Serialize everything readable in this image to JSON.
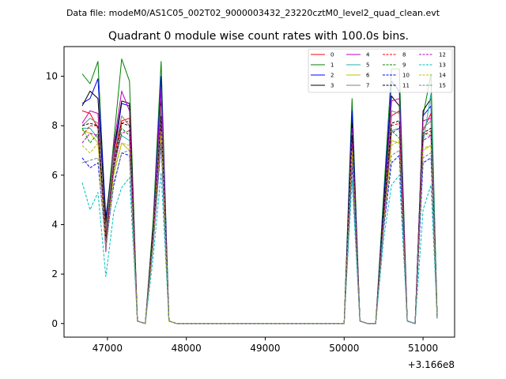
{
  "chart_data": {
    "type": "line",
    "suptitle": "Data file: modeM0/AS1C05_002T02_9000003432_23220cztM0_level2_quad_clean.evt",
    "title": "Quadrant 0 module wise count rates with 100.0s bins.",
    "xlabel": "",
    "ylabel": "",
    "x_offset_label": "+3.166e8",
    "xlim": [
      46450,
      51400
    ],
    "ylim": [
      -0.55,
      11.2
    ],
    "xticks": [
      47000,
      48000,
      49000,
      50000,
      51000
    ],
    "xtick_labels": [
      "47000",
      "48000",
      "49000",
      "50000",
      "51000"
    ],
    "yticks": [
      0,
      2,
      4,
      6,
      8,
      10
    ],
    "ytick_labels": [
      "0",
      "2",
      "4",
      "6",
      "8",
      "10"
    ],
    "grid": false,
    "legend_position": "top-right",
    "x": [
      46680,
      46780,
      46880,
      46980,
      47080,
      47180,
      47280,
      47380,
      47480,
      47580,
      47680,
      47780,
      47880,
      47980,
      50000,
      50100,
      50200,
      50300,
      50400,
      50500,
      50600,
      50700,
      50800,
      50900,
      51000,
      51100,
      51180
    ],
    "series": [
      {
        "name": "0",
        "color": "#ff0000",
        "dash": "solid",
        "values": [
          8.6,
          8.5,
          7.9,
          3.3,
          6.7,
          8.2,
          8.3,
          0.1,
          0.0,
          3.4,
          9.0,
          0.1,
          0.0,
          0.0,
          0.0,
          8.0,
          0.1,
          0.0,
          0.0,
          4.5,
          8.4,
          8.6,
          0.1,
          0.0,
          7.8,
          8.5,
          0.2
        ]
      },
      {
        "name": "1",
        "color": "#008000",
        "dash": "solid",
        "values": [
          10.1,
          9.7,
          10.6,
          4.0,
          7.4,
          10.7,
          9.8,
          0.1,
          0.0,
          4.2,
          10.6,
          0.1,
          0.0,
          0.0,
          0.0,
          9.1,
          0.1,
          0.0,
          0.0,
          5.2,
          10.3,
          10.3,
          0.1,
          0.0,
          8.4,
          10.1,
          0.2
        ]
      },
      {
        "name": "2",
        "color": "#0000ff",
        "dash": "solid",
        "values": [
          8.9,
          9.1,
          9.9,
          4.3,
          6.8,
          8.9,
          8.8,
          0.1,
          0.0,
          3.8,
          10.0,
          0.1,
          0.0,
          0.0,
          0.0,
          8.6,
          0.1,
          0.0,
          0.0,
          4.8,
          9.8,
          9.4,
          0.1,
          0.0,
          8.4,
          8.8,
          0.2
        ]
      },
      {
        "name": "3",
        "color": "#000000",
        "dash": "solid",
        "values": [
          8.8,
          9.4,
          9.1,
          4.1,
          7.0,
          9.0,
          8.9,
          0.1,
          0.0,
          3.9,
          8.9,
          0.1,
          0.0,
          0.0,
          0.0,
          8.1,
          0.1,
          0.0,
          0.0,
          4.6,
          9.2,
          8.8,
          0.1,
          0.0,
          8.6,
          9.1,
          0.2
        ]
      },
      {
        "name": "4",
        "color": "#bf00bf",
        "dash": "solid",
        "values": [
          8.1,
          8.6,
          8.5,
          2.9,
          7.2,
          9.4,
          8.6,
          0.1,
          0.0,
          3.7,
          9.5,
          0.1,
          0.0,
          0.0,
          0.0,
          7.9,
          0.1,
          0.0,
          0.0,
          4.4,
          9.0,
          9.1,
          0.1,
          0.0,
          8.2,
          8.3,
          0.2
        ]
      },
      {
        "name": "5",
        "color": "#20b2aa",
        "dash": "solid",
        "values": [
          7.9,
          7.9,
          7.5,
          3.6,
          6.6,
          7.6,
          7.4,
          0.1,
          0.0,
          3.5,
          8.6,
          0.1,
          0.0,
          0.0,
          0.0,
          7.0,
          0.1,
          0.0,
          0.0,
          4.2,
          7.8,
          7.9,
          0.1,
          0.0,
          7.3,
          9.3,
          0.2
        ]
      },
      {
        "name": "6",
        "color": "#bfbf00",
        "dash": "solid",
        "values": [
          7.8,
          7.7,
          7.3,
          3.4,
          6.1,
          7.3,
          7.0,
          0.1,
          0.0,
          3.3,
          7.6,
          0.1,
          0.0,
          0.0,
          0.0,
          6.8,
          0.1,
          0.0,
          0.0,
          4.0,
          7.4,
          7.3,
          0.1,
          0.0,
          7.0,
          7.2,
          0.2
        ]
      },
      {
        "name": "7",
        "color": "#808080",
        "dash": "solid",
        "values": [
          8.0,
          8.3,
          8.1,
          3.8,
          6.9,
          8.4,
          8.0,
          0.1,
          0.0,
          3.6,
          8.8,
          0.1,
          0.0,
          0.0,
          0.0,
          7.7,
          0.1,
          0.0,
          0.0,
          4.4,
          8.6,
          8.5,
          0.1,
          0.0,
          7.9,
          8.2,
          0.2
        ]
      },
      {
        "name": "8",
        "color": "#ff0000",
        "dash": "dashed",
        "values": [
          7.6,
          8.0,
          8.0,
          3.5,
          6.5,
          8.1,
          8.2,
          0.1,
          0.0,
          3.5,
          8.3,
          0.1,
          0.0,
          0.0,
          0.0,
          7.6,
          0.1,
          0.0,
          0.0,
          4.3,
          8.0,
          8.1,
          0.1,
          0.0,
          7.6,
          7.8,
          0.2
        ]
      },
      {
        "name": "9",
        "color": "#008000",
        "dash": "dashed",
        "values": [
          7.9,
          7.3,
          7.7,
          3.3,
          6.2,
          7.9,
          7.6,
          0.1,
          0.0,
          3.4,
          8.1,
          0.1,
          0.0,
          0.0,
          0.0,
          7.4,
          0.1,
          0.0,
          0.0,
          4.1,
          7.8,
          7.5,
          0.1,
          0.0,
          7.7,
          7.6,
          0.2
        ]
      },
      {
        "name": "10",
        "color": "#0000ff",
        "dash": "dashed",
        "values": [
          6.7,
          6.3,
          6.5,
          3.2,
          5.6,
          6.9,
          6.8,
          0.1,
          0.0,
          3.2,
          7.3,
          0.1,
          0.0,
          0.0,
          0.0,
          6.4,
          0.1,
          0.0,
          0.0,
          3.8,
          6.5,
          6.8,
          0.1,
          0.0,
          6.5,
          6.7,
          0.2
        ]
      },
      {
        "name": "11",
        "color": "#000000",
        "dash": "dashed",
        "values": [
          8.0,
          8.1,
          8.0,
          3.4,
          6.4,
          8.1,
          8.0,
          0.1,
          0.0,
          3.5,
          8.4,
          0.1,
          0.0,
          0.0,
          0.0,
          7.6,
          0.1,
          0.0,
          0.0,
          4.4,
          8.1,
          8.2,
          0.1,
          0.0,
          7.7,
          7.9,
          0.2
        ]
      },
      {
        "name": "12",
        "color": "#bf00bf",
        "dash": "dashed",
        "values": [
          7.3,
          7.7,
          7.6,
          3.3,
          6.3,
          7.7,
          7.8,
          0.1,
          0.0,
          3.4,
          8.0,
          0.1,
          0.0,
          0.0,
          0.0,
          7.3,
          0.1,
          0.0,
          0.0,
          4.2,
          7.7,
          7.9,
          0.1,
          0.0,
          7.4,
          7.6,
          0.2
        ]
      },
      {
        "name": "13",
        "color": "#00bfbf",
        "dash": "dashed",
        "values": [
          5.7,
          4.6,
          5.3,
          1.9,
          4.5,
          5.5,
          5.9,
          0.1,
          0.0,
          2.7,
          6.1,
          0.1,
          0.0,
          0.0,
          0.0,
          5.8,
          0.1,
          0.0,
          0.0,
          3.4,
          5.6,
          6.0,
          0.1,
          0.0,
          4.6,
          5.6,
          0.2
        ]
      },
      {
        "name": "14",
        "color": "#bfbf00",
        "dash": "dashed",
        "values": [
          7.2,
          6.9,
          7.3,
          3.1,
          6.0,
          7.3,
          7.2,
          0.1,
          0.0,
          3.3,
          7.8,
          0.1,
          0.0,
          0.0,
          0.0,
          7.0,
          0.1,
          0.0,
          0.0,
          4.0,
          7.2,
          7.4,
          0.1,
          0.0,
          7.1,
          7.2,
          0.2
        ]
      },
      {
        "name": "15",
        "color": "#708090",
        "dash": "dashed",
        "values": [
          6.5,
          6.6,
          6.7,
          3.0,
          5.7,
          6.9,
          7.0,
          0.1,
          0.0,
          3.2,
          7.3,
          0.1,
          0.0,
          0.0,
          0.0,
          6.6,
          0.1,
          0.0,
          0.0,
          3.9,
          6.8,
          7.0,
          0.1,
          0.0,
          6.7,
          6.9,
          0.2
        ]
      }
    ]
  }
}
